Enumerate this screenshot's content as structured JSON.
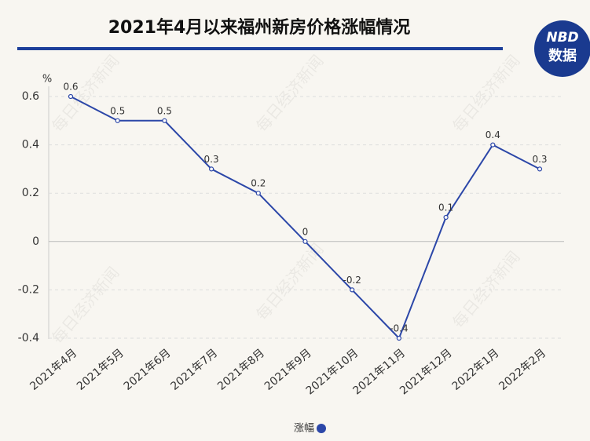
{
  "chart_data": {
    "type": "line",
    "title": "2021年4月以来福州新房价格涨幅情况",
    "y_unit": "%",
    "categories": [
      "2021年4月",
      "2021年5月",
      "2021年6月",
      "2021年7月",
      "2021年8月",
      "2021年9月",
      "2021年10月",
      "2021年11月",
      "2021年12月",
      "2022年1月",
      "2022年2月"
    ],
    "series": [
      {
        "name": "涨幅",
        "color": "#2c47a8",
        "values": [
          0.6,
          0.5,
          0.5,
          0.3,
          0.2,
          0,
          -0.2,
          -0.4,
          0.1,
          0.4,
          0.3
        ]
      }
    ],
    "ylim": [
      -0.4,
      0.6
    ],
    "yticks": [
      0.6,
      0.4,
      0.2,
      0,
      -0.2,
      -0.4
    ],
    "grid": true,
    "legend": "bottom"
  },
  "logo": {
    "top": "NBD",
    "bottom": "数据"
  },
  "watermark": "每日经济新闻"
}
